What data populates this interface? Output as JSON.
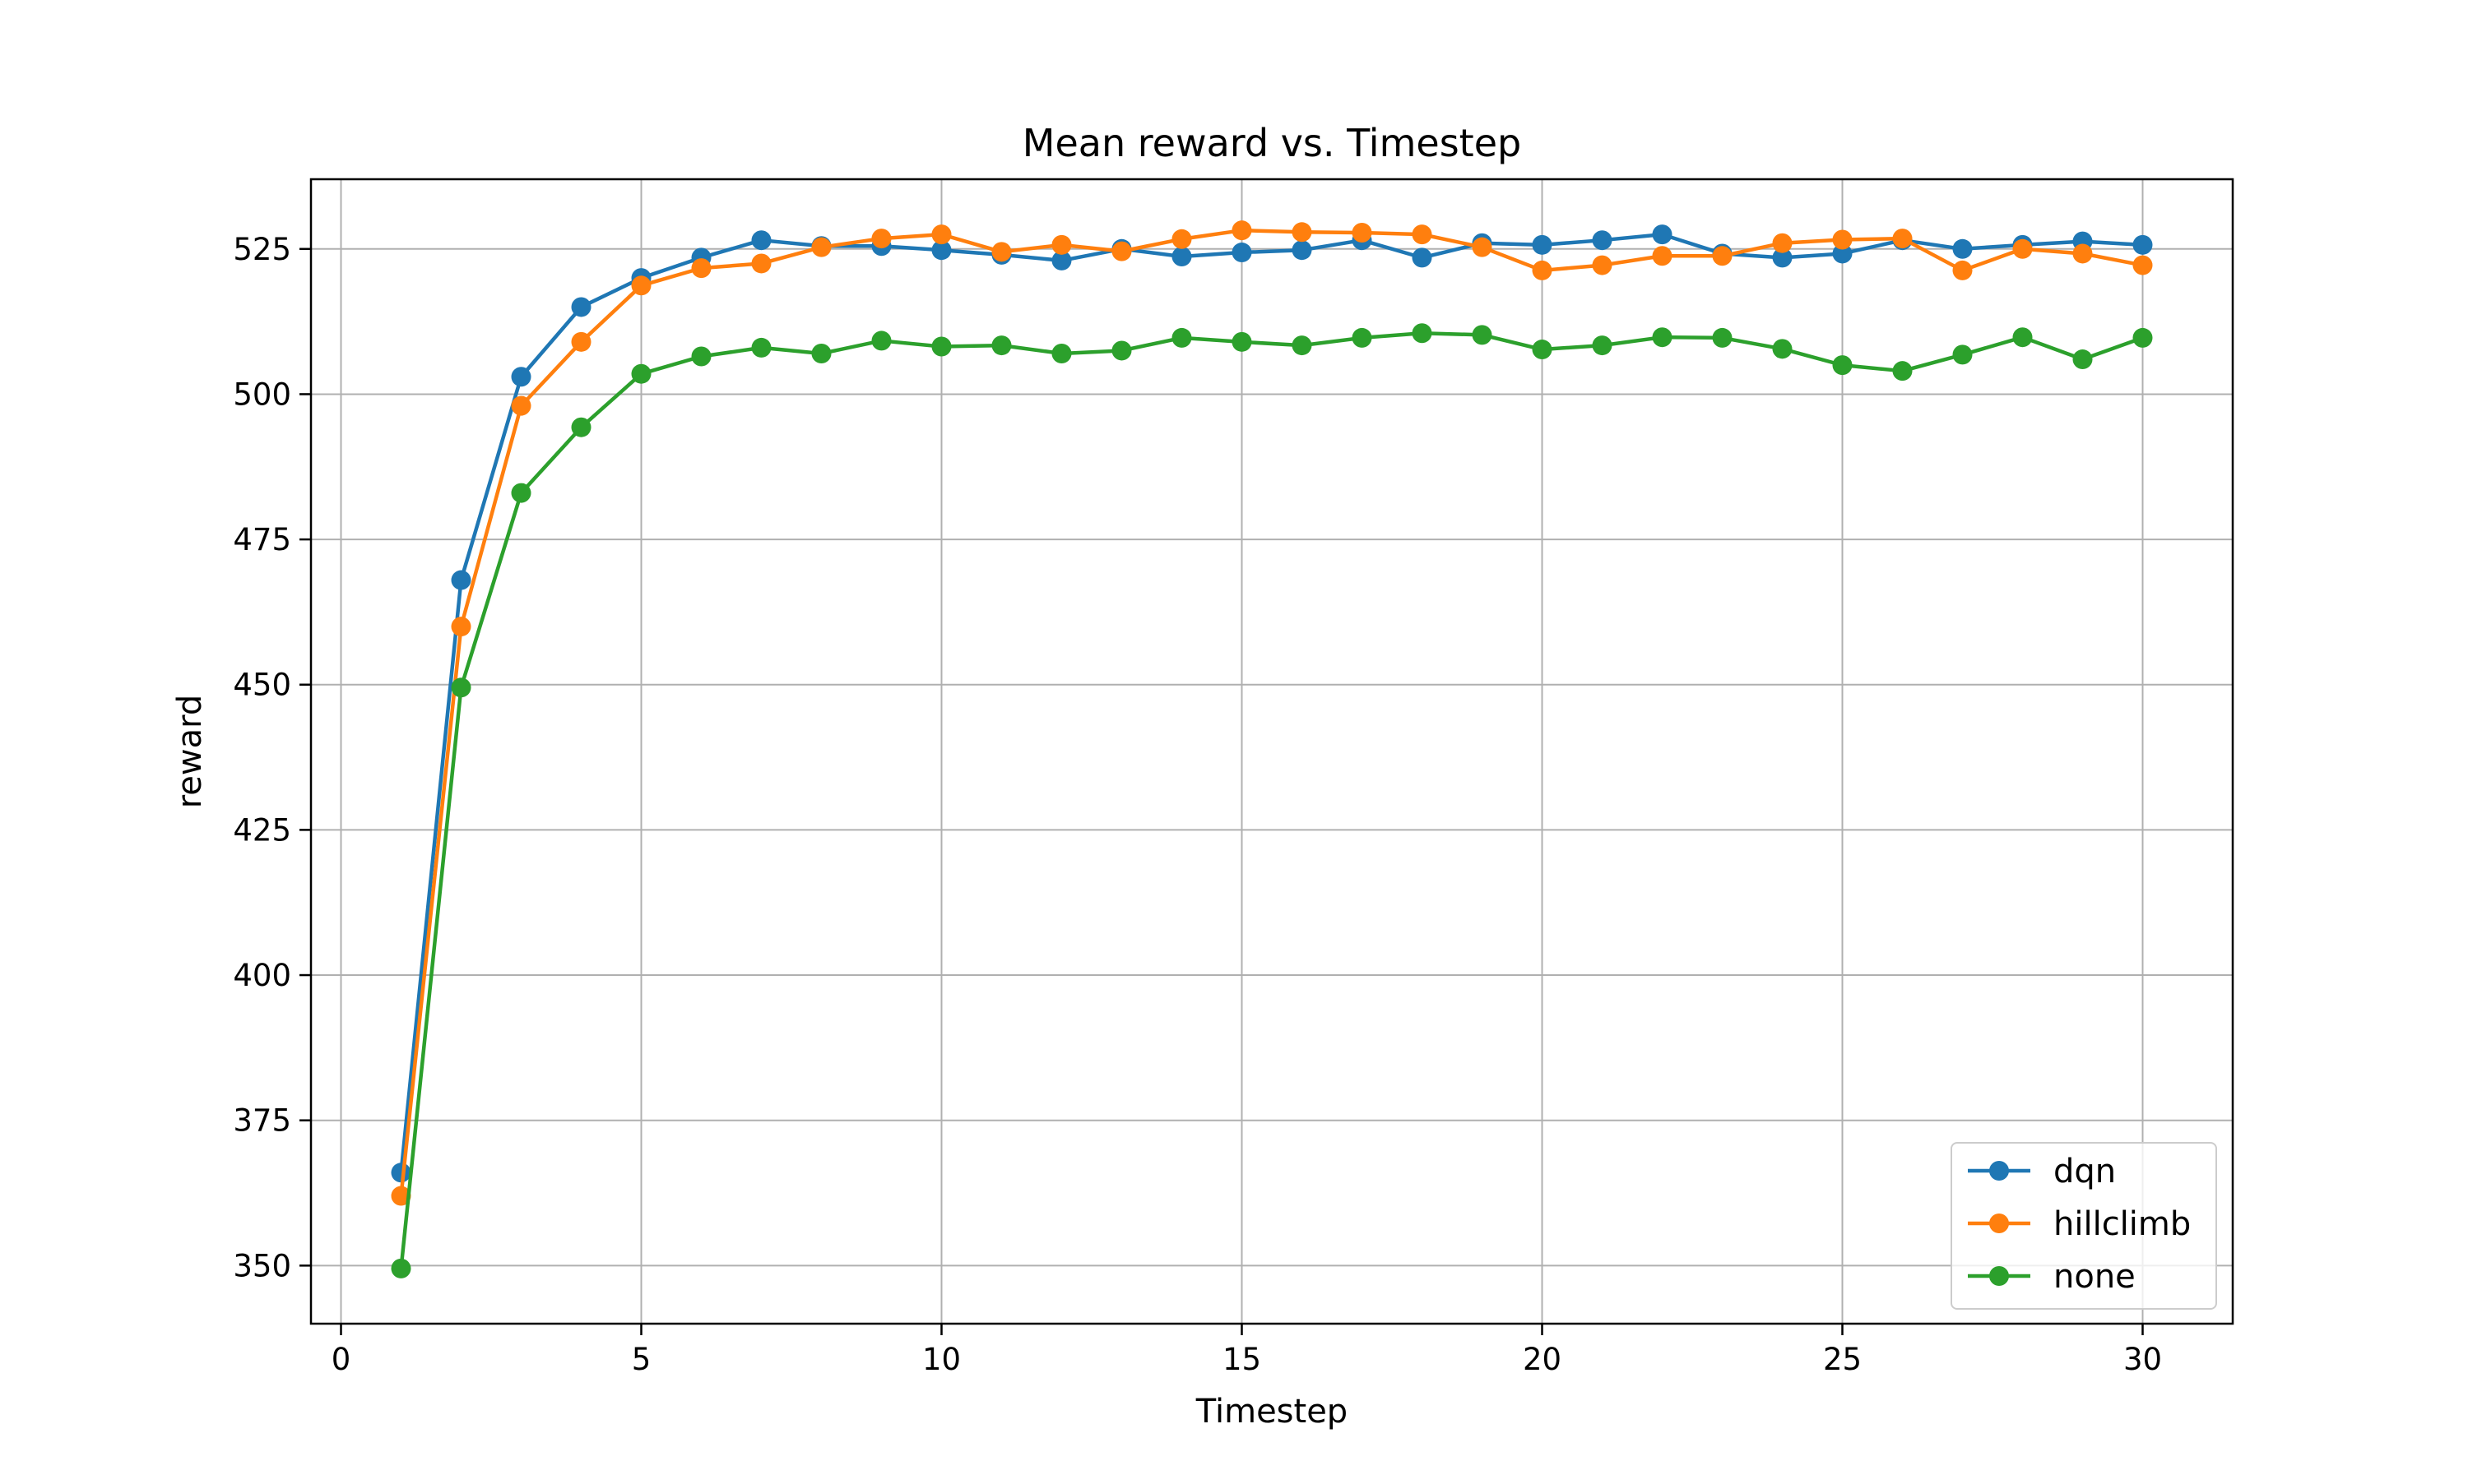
{
  "chart_data": {
    "type": "line",
    "title": "Mean reward vs. Timestep",
    "xlabel": "Timestep",
    "ylabel": "reward",
    "xlim": [
      -0.5,
      31.5
    ],
    "ylim": [
      340,
      537
    ],
    "xticks": [
      0,
      5,
      10,
      15,
      20,
      25,
      30
    ],
    "yticks": [
      350,
      375,
      400,
      425,
      450,
      475,
      500,
      525
    ],
    "grid": true,
    "legend_position": "lower right",
    "x": [
      1,
      2,
      3,
      4,
      5,
      6,
      7,
      8,
      9,
      10,
      11,
      12,
      13,
      14,
      15,
      16,
      17,
      18,
      19,
      20,
      21,
      22,
      23,
      24,
      25,
      26,
      27,
      28,
      29,
      30
    ],
    "series": [
      {
        "name": "dqn",
        "color": "#1f77b4",
        "values": [
          366,
          468,
          503,
          515,
          520,
          523.5,
          526.5,
          525.5,
          525.5,
          524.8,
          524,
          523,
          525,
          523.7,
          524.4,
          524.8,
          526.5,
          523.5,
          526,
          525.7,
          526.5,
          527.5,
          524.2,
          523.5,
          524.2,
          526.5,
          525,
          525.7,
          526.3,
          525.7
        ]
      },
      {
        "name": "hillclimb",
        "color": "#ff7f0e",
        "values": [
          362,
          460,
          498,
          509,
          518.7,
          521.7,
          522.5,
          525.3,
          526.8,
          527.5,
          524.5,
          525.7,
          524.6,
          526.7,
          528.2,
          527.9,
          527.8,
          527.5,
          525.3,
          521.3,
          522.2,
          523.8,
          523.8,
          526,
          526.6,
          526.8,
          521.3,
          525,
          524.2,
          522.2
        ]
      },
      {
        "name": "none",
        "color": "#2ca02c",
        "values": [
          349.5,
          449.5,
          483,
          494.3,
          503.5,
          506.5,
          508,
          507,
          509.2,
          508.2,
          508.4,
          507,
          507.5,
          509.7,
          509,
          508.4,
          509.7,
          510.5,
          510.2,
          507.7,
          508.4,
          509.8,
          509.7,
          507.8,
          505,
          504,
          506.8,
          509.8,
          506,
          509.7
        ]
      }
    ]
  }
}
